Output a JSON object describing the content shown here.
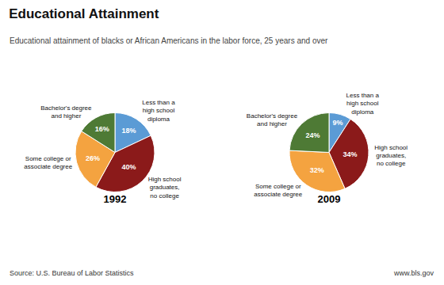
{
  "title": "Educational Attainment",
  "subtitle": "Educational attainment of blacks or African Americans in the labor force, 25 years and over",
  "annotations": [
    "Source: U.S. Bureau of Labor Statistics",
    "www.bls.gov"
  ],
  "chart_data": [
    {
      "type": "pie",
      "title": "1992",
      "categories": [
        "Less than a\nhigh school\ndiploma",
        "High school\ngraduates,\nno college",
        "Some college or\nassociate degree",
        "Bachelor's degree\nand higher"
      ],
      "values": [
        18,
        40,
        26,
        16
      ],
      "value_labels": [
        "18%",
        "40%",
        "26%",
        "16%"
      ],
      "colors": [
        "#5b9bd5",
        "#8b1a1a",
        "#f4a340",
        "#4e7a35"
      ],
      "data_labels": true
    },
    {
      "type": "pie",
      "title": "2009",
      "categories": [
        "Less than a\nhigh school\ndiploma",
        "High school\ngraduates,\nno college",
        "Some college or\nassociate degree",
        "Bachelor's degree\nand higher"
      ],
      "values": [
        9,
        34,
        32,
        24
      ],
      "value_labels": [
        "9%",
        "34%",
        "32%",
        "24%"
      ],
      "colors": [
        "#5b9bd5",
        "#8b1a1a",
        "#f4a340",
        "#4e7a35"
      ],
      "data_labels": true
    }
  ]
}
